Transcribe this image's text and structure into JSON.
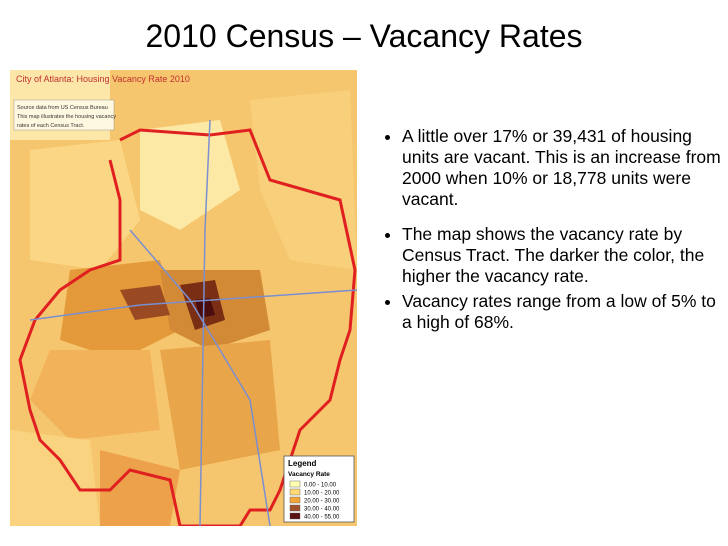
{
  "title": "2010 Census – Vacancy Rates",
  "map": {
    "title": "City of Atlanta: Housing Vacancy Rate 2010",
    "note_lines": [
      "Source data from US Census Bureau",
      "This map illustrates the housing vacancy",
      "rates of each Census Tract."
    ],
    "legend": {
      "title": "Legend",
      "subtitle": "Vacancy Rate",
      "classes": [
        {
          "label": "0.00 - 10.00",
          "color": "#ffffb2"
        },
        {
          "label": "10.00 - 20.00",
          "color": "#fed976"
        },
        {
          "label": "20.00 - 30.00",
          "color": "#f2a33a"
        },
        {
          "label": "30.00 - 40.00",
          "color": "#a0522d"
        },
        {
          "label": "40.00 - 55.00",
          "color": "#5a1010"
        }
      ]
    }
  },
  "bullets": [
    "A little over 17% or 39,431 of housing units are vacant. This is an increase from 2000 when 10% or 18,778 units were vacant.",
    "The map shows the vacancy rate by Census Tract. The darker the color, the higher the vacancy rate.",
    "Vacancy rates range from a low of 5% to a high of 68%."
  ]
}
